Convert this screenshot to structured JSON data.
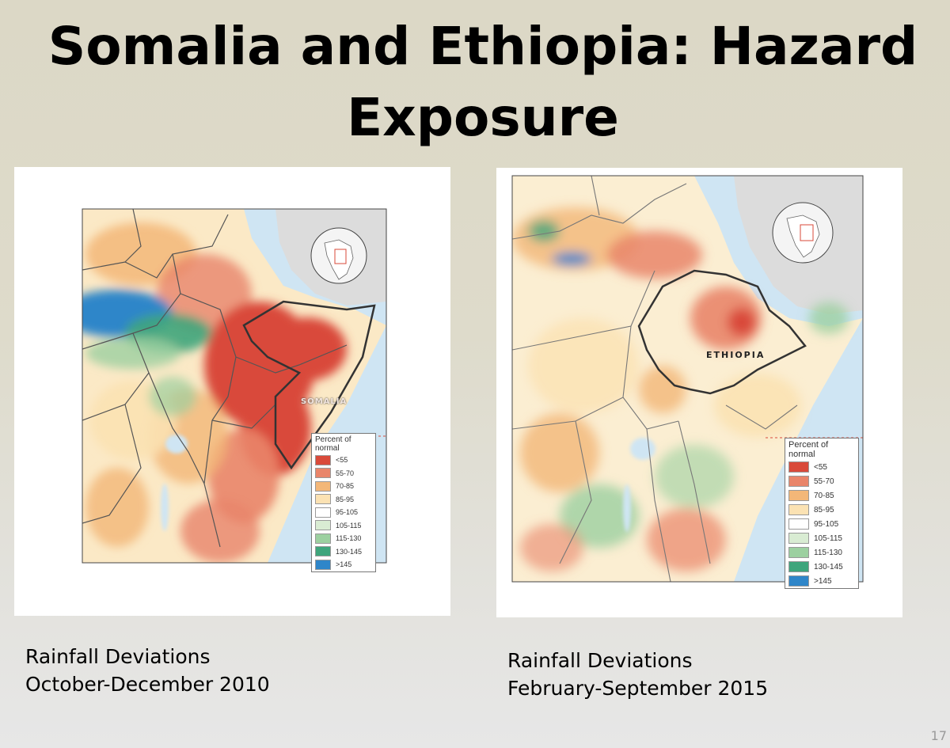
{
  "slide": {
    "title": "Somalia and Ethiopia: Hazard Exposure",
    "slide_number": "17"
  },
  "maps": [
    {
      "country_label": "SOMALIA",
      "caption_line1": "Rainfall Deviations",
      "caption_line2": "October-December 2010",
      "legend": {
        "title": "Percent of normal",
        "items": [
          {
            "label": "<55",
            "color": "#d94a3a"
          },
          {
            "label": "55-70",
            "color": "#e9856a"
          },
          {
            "label": "70-85",
            "color": "#f3b778"
          },
          {
            "label": "85-95",
            "color": "#fbe2b3"
          },
          {
            "label": "95-105",
            "color": "#ffffff"
          },
          {
            "label": "105-115",
            "color": "#d9ecd3"
          },
          {
            "label": "115-130",
            "color": "#9cd0a0"
          },
          {
            "label": "130-145",
            "color": "#3ea57c"
          },
          {
            "label": ">145",
            "color": "#2f86c9"
          }
        ]
      }
    },
    {
      "country_label": "ETHIOPIA",
      "caption_line1": "Rainfall Deviations",
      "caption_line2": "February-September 2015",
      "legend": {
        "title": "Percent of normal",
        "items": [
          {
            "label": "<55",
            "color": "#d94a3a"
          },
          {
            "label": "55-70",
            "color": "#e9856a"
          },
          {
            "label": "70-85",
            "color": "#f3b778"
          },
          {
            "label": "85-95",
            "color": "#fbe2b3"
          },
          {
            "label": "95-105",
            "color": "#ffffff"
          },
          {
            "label": "105-115",
            "color": "#d9ecd3"
          },
          {
            "label": "115-130",
            "color": "#9cd0a0"
          },
          {
            "label": "130-145",
            "color": "#3ea57c"
          },
          {
            "label": ">145",
            "color": "#2f86c9"
          }
        ]
      }
    }
  ],
  "colors": {
    "sea": "#cfe5f3",
    "arabia": "#dcdcdc",
    "border": "#555555"
  }
}
